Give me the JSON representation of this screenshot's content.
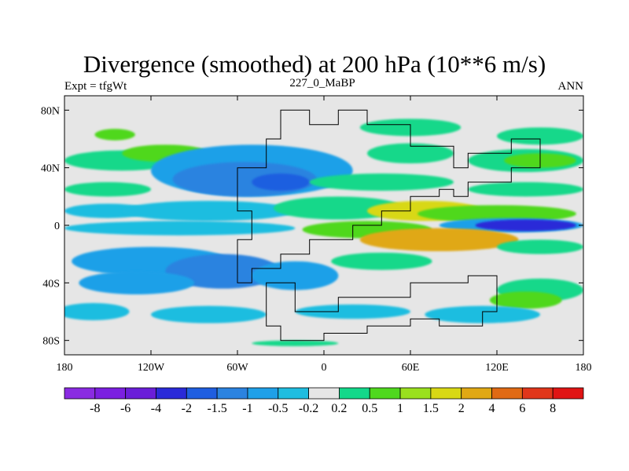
{
  "chart_data": {
    "type": "heatmap",
    "title": "Divergence (smoothed) at 200 hPa (10**6 m/s)",
    "left_label": "Expt = tfgWt",
    "center_label": "227_0_MaBP",
    "right_label": "ANN",
    "x_ticks": [
      {
        "value": -180,
        "label": "180"
      },
      {
        "value": -120,
        "label": "120W"
      },
      {
        "value": -60,
        "label": "60W"
      },
      {
        "value": 0,
        "label": "0"
      },
      {
        "value": 60,
        "label": "60E"
      },
      {
        "value": 120,
        "label": "120E"
      },
      {
        "value": 180,
        "label": "180"
      }
    ],
    "y_ticks": [
      {
        "value": 80,
        "label": "80N"
      },
      {
        "value": 40,
        "label": "40N"
      },
      {
        "value": 0,
        "label": "0"
      },
      {
        "value": -40,
        "label": "40S"
      },
      {
        "value": -80,
        "label": "80S"
      }
    ],
    "xlim": [
      -180,
      180
    ],
    "ylim": [
      -90,
      90
    ],
    "colorbar": {
      "colors": [
        "#8a2be2",
        "#7b1fe0",
        "#6a1ed8",
        "#2a2ad8",
        "#1f5ee0",
        "#2b83e0",
        "#1fa0e8",
        "#1fbde0",
        "#e6e6e6",
        "#13d88a",
        "#4fd81e",
        "#9ae01e",
        "#d8d814",
        "#e0a814",
        "#e06a14",
        "#e0361a",
        "#e01414"
      ],
      "labels": [
        "-8",
        "-6",
        "-4",
        "-2",
        "-1.5",
        "-1",
        "-0.5",
        "-0.2",
        "0.2",
        "0.5",
        "1",
        "1.5",
        "2",
        "4",
        "6",
        "8"
      ]
    },
    "field_blobs": [
      {
        "lon": -145,
        "lat": 63,
        "rlon": 14,
        "rlat": 4,
        "c": 10
      },
      {
        "lon": 60,
        "lat": 68,
        "rlon": 35,
        "rlat": 6,
        "c": 9
      },
      {
        "lon": 150,
        "lat": 62,
        "rlon": 30,
        "rlat": 6,
        "c": 9
      },
      {
        "lon": -140,
        "lat": 45,
        "rlon": 40,
        "rlat": 7,
        "c": 9
      },
      {
        "lon": -110,
        "lat": 50,
        "rlon": 30,
        "rlat": 6,
        "c": 10
      },
      {
        "lon": 140,
        "lat": 45,
        "rlon": 40,
        "rlat": 8,
        "c": 9
      },
      {
        "lon": 150,
        "lat": 45,
        "rlon": 25,
        "rlat": 5,
        "c": 10
      },
      {
        "lon": 60,
        "lat": 50,
        "rlon": 30,
        "rlat": 7,
        "c": 9
      },
      {
        "lon": -50,
        "lat": 38,
        "rlon": 70,
        "rlat": 18,
        "c": 6
      },
      {
        "lon": -55,
        "lat": 32,
        "rlon": 50,
        "rlat": 12,
        "c": 5
      },
      {
        "lon": -30,
        "lat": 30,
        "rlon": 20,
        "rlat": 6,
        "c": 4
      },
      {
        "lon": -150,
        "lat": 25,
        "rlon": 30,
        "rlat": 5,
        "c": 9
      },
      {
        "lon": 40,
        "lat": 30,
        "rlon": 50,
        "rlat": 6,
        "c": 9
      },
      {
        "lon": 140,
        "lat": 25,
        "rlon": 40,
        "rlat": 5,
        "c": 9
      },
      {
        "lon": -150,
        "lat": 10,
        "rlon": 30,
        "rlat": 5,
        "c": 7
      },
      {
        "lon": -80,
        "lat": 10,
        "rlon": 60,
        "rlat": 7,
        "c": 7
      },
      {
        "lon": 10,
        "lat": 12,
        "rlon": 45,
        "rlat": 8,
        "c": 9
      },
      {
        "lon": 70,
        "lat": 10,
        "rlon": 40,
        "rlat": 7,
        "c": 12
      },
      {
        "lon": 120,
        "lat": 8,
        "rlon": 55,
        "rlat": 6,
        "c": 10
      },
      {
        "lon": 130,
        "lat": 0,
        "rlon": 50,
        "rlat": 5,
        "c": 6
      },
      {
        "lon": 140,
        "lat": 0,
        "rlon": 35,
        "rlat": 4,
        "c": 3
      },
      {
        "lon": -100,
        "lat": -2,
        "rlon": 80,
        "rlat": 5,
        "c": 7
      },
      {
        "lon": 30,
        "lat": -3,
        "rlon": 45,
        "rlat": 6,
        "c": 10
      },
      {
        "lon": 80,
        "lat": -10,
        "rlon": 55,
        "rlat": 8,
        "c": 13
      },
      {
        "lon": 150,
        "lat": -15,
        "rlon": 30,
        "rlat": 5,
        "c": 9
      },
      {
        "lon": -120,
        "lat": -25,
        "rlon": 55,
        "rlat": 10,
        "c": 6
      },
      {
        "lon": -70,
        "lat": -32,
        "rlon": 40,
        "rlat": 12,
        "c": 5
      },
      {
        "lon": -130,
        "lat": -40,
        "rlon": 40,
        "rlat": 8,
        "c": 6
      },
      {
        "lon": -20,
        "lat": -35,
        "rlon": 30,
        "rlat": 10,
        "c": 6
      },
      {
        "lon": 40,
        "lat": -25,
        "rlon": 35,
        "rlat": 6,
        "c": 9
      },
      {
        "lon": 150,
        "lat": -45,
        "rlon": 30,
        "rlat": 8,
        "c": 9
      },
      {
        "lon": 140,
        "lat": -52,
        "rlon": 25,
        "rlat": 6,
        "c": 10
      },
      {
        "lon": -160,
        "lat": -60,
        "rlon": 25,
        "rlat": 6,
        "c": 7
      },
      {
        "lon": -80,
        "lat": -62,
        "rlon": 40,
        "rlat": 6,
        "c": 7
      },
      {
        "lon": 20,
        "lat": -60,
        "rlon": 40,
        "rlat": 5,
        "c": 7
      },
      {
        "lon": 110,
        "lat": -62,
        "rlon": 40,
        "rlat": 6,
        "c": 7
      },
      {
        "lon": -20,
        "lat": -82,
        "rlon": 30,
        "rlat": 2,
        "c": 9
      }
    ],
    "landmass": [
      {
        "lon": [
          -60,
          -40,
          -40,
          -30,
          -30,
          -10,
          -10,
          10,
          10,
          30,
          30,
          60,
          60,
          90,
          90,
          100,
          100,
          130,
          130,
          150,
          150,
          130,
          130,
          100,
          100,
          90,
          90,
          80,
          80,
          60,
          60,
          40,
          40,
          20,
          20,
          -10,
          -10,
          -30,
          -30,
          -50,
          -50,
          -60,
          -60,
          -50,
          -50,
          -60,
          -60
        ],
        "lat": [
          40,
          40,
          60,
          60,
          80,
          80,
          70,
          70,
          80,
          80,
          70,
          70,
          55,
          55,
          40,
          40,
          50,
          50,
          60,
          60,
          40,
          40,
          30,
          30,
          20,
          20,
          25,
          25,
          20,
          20,
          10,
          10,
          0,
          0,
          -10,
          -10,
          -20,
          -20,
          -30,
          -30,
          -40,
          -40,
          -10,
          -10,
          10,
          10,
          40
        ]
      },
      {
        "lon": [
          -40,
          -20,
          -20,
          10,
          10,
          60,
          60,
          100,
          100,
          120,
          120,
          110,
          110,
          80,
          80,
          60,
          60,
          30,
          30,
          0,
          0,
          -30,
          -30,
          -40
        ],
        "lat": [
          -40,
          -40,
          -60,
          -60,
          -50,
          -50,
          -40,
          -40,
          -35,
          -35,
          -60,
          -60,
          -70,
          -70,
          -65,
          -65,
          -70,
          -70,
          -75,
          -75,
          -80,
          -80,
          -70,
          -70
        ]
      }
    ]
  }
}
